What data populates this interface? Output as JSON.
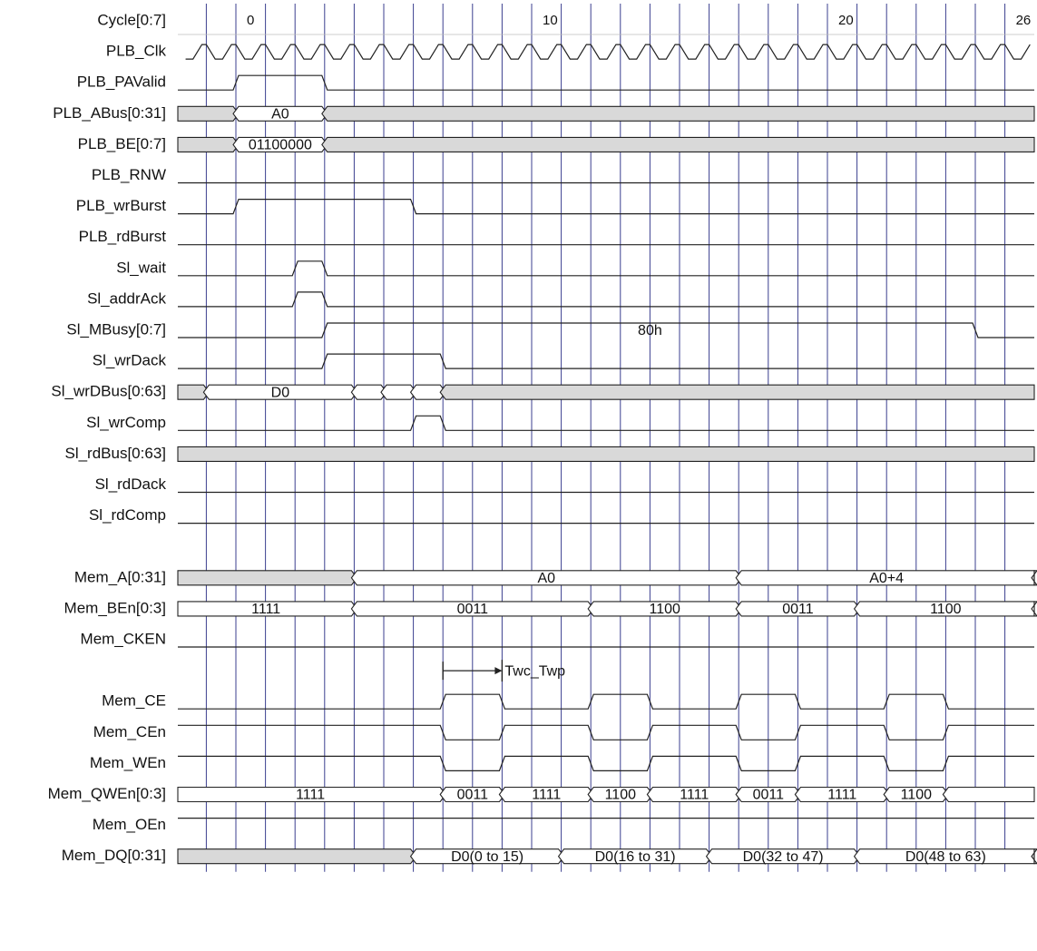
{
  "signals": [
    {
      "name": "Cycle[0:7]",
      "kind": "cycle",
      "labels": [
        {
          "cycle": 0,
          "text": "0"
        },
        {
          "cycle": 10,
          "text": "10"
        },
        {
          "cycle": 20,
          "text": "20"
        },
        {
          "cycle": 26,
          "text": "26"
        }
      ]
    },
    {
      "name": "PLB_Clk",
      "kind": "clock"
    },
    {
      "name": "PLB_PAValid",
      "kind": "bit",
      "pulses": [
        [
          0,
          3
        ]
      ]
    },
    {
      "name": "PLB_ABus[0:31]",
      "kind": "bus",
      "segs": [
        {
          "from": -5,
          "to": 0,
          "state": "x"
        },
        {
          "from": 0,
          "to": 3,
          "state": "v",
          "text": "A0"
        },
        {
          "from": 3,
          "to": 27.5,
          "state": "x"
        }
      ]
    },
    {
      "name": "PLB_BE[0:7]",
      "kind": "bus",
      "segs": [
        {
          "from": -5,
          "to": 0,
          "state": "x"
        },
        {
          "from": 0,
          "to": 3,
          "state": "v",
          "text": "01100000"
        },
        {
          "from": 3,
          "to": 27.5,
          "state": "x"
        }
      ]
    },
    {
      "name": "PLB_RNW",
      "kind": "bit",
      "pulses": []
    },
    {
      "name": "PLB_wrBurst",
      "kind": "bit",
      "pulses": [
        [
          0,
          6
        ]
      ]
    },
    {
      "name": "PLB_rdBurst",
      "kind": "bit",
      "pulses": []
    },
    {
      "name": "Sl_wait",
      "kind": "bit",
      "pulses": [
        [
          2,
          3
        ]
      ]
    },
    {
      "name": "Sl_addrAck",
      "kind": "bit",
      "pulses": [
        [
          2,
          3
        ]
      ]
    },
    {
      "name": "Sl_MBusy[0:7]",
      "kind": "busline",
      "from": 3,
      "to": 25,
      "text": "80h"
    },
    {
      "name": "Sl_wrDack",
      "kind": "bit",
      "pulses": [
        [
          3,
          7
        ]
      ]
    },
    {
      "name": "Sl_wrDBus[0:63]",
      "kind": "bus",
      "segs": [
        {
          "from": -5,
          "to": -1,
          "state": "x"
        },
        {
          "from": -1,
          "to": 4,
          "state": "v",
          "text": "D0"
        },
        {
          "from": 4,
          "to": 5,
          "state": "v"
        },
        {
          "from": 5,
          "to": 6,
          "state": "v"
        },
        {
          "from": 6,
          "to": 7,
          "state": "v"
        },
        {
          "from": 7,
          "to": 27.5,
          "state": "x"
        }
      ]
    },
    {
      "name": "Sl_wrComp",
      "kind": "bit",
      "pulses": [
        [
          6,
          7
        ]
      ]
    },
    {
      "name": "Sl_rdBus[0:63]",
      "kind": "bus",
      "segs": [
        {
          "from": -5,
          "to": 27.5,
          "state": "x"
        }
      ]
    },
    {
      "name": "Sl_rdDack",
      "kind": "bit",
      "pulses": []
    },
    {
      "name": "Sl_rdComp",
      "kind": "bit",
      "pulses": []
    },
    {
      "name": "",
      "kind": "gap"
    },
    {
      "name": "Mem_A[0:31]",
      "kind": "bus",
      "segs": [
        {
          "from": -5,
          "to": 4,
          "state": "x"
        },
        {
          "from": 4,
          "to": 17,
          "state": "v",
          "text": "A0"
        },
        {
          "from": 17,
          "to": 27,
          "state": "v",
          "text": "A0+4"
        },
        {
          "from": 27,
          "to": 27.5,
          "state": "x"
        }
      ]
    },
    {
      "name": "Mem_BEn[0:3]",
      "kind": "bus",
      "segs": [
        {
          "from": -5,
          "to": 4,
          "state": "v",
          "text": "1111"
        },
        {
          "from": 4,
          "to": 12,
          "state": "v",
          "text": "0011"
        },
        {
          "from": 12,
          "to": 17,
          "state": "v",
          "text": "1100"
        },
        {
          "from": 17,
          "to": 21,
          "state": "v",
          "text": "0011"
        },
        {
          "from": 21,
          "to": 27,
          "state": "v",
          "text": "1100"
        },
        {
          "from": 27,
          "to": 27.5,
          "state": "v"
        }
      ]
    },
    {
      "name": "Mem_CKEN",
      "kind": "bit",
      "pulses": []
    },
    {
      "name": "",
      "kind": "annotation",
      "from": 7,
      "to": 9,
      "text": "Twc_Twp"
    },
    {
      "name": "Mem_CE",
      "kind": "bit",
      "pulses": [
        [
          7,
          9
        ],
        [
          12,
          14
        ],
        [
          17,
          19
        ],
        [
          22,
          24
        ]
      ]
    },
    {
      "name": "Mem_CEn",
      "kind": "bit",
      "dips": [
        [
          7,
          9
        ],
        [
          12,
          14
        ],
        [
          17,
          19
        ],
        [
          22,
          24
        ]
      ]
    },
    {
      "name": "Mem_WEn",
      "kind": "bit",
      "dips": [
        [
          7,
          9
        ],
        [
          12,
          14
        ],
        [
          17,
          19
        ],
        [
          22,
          24
        ]
      ]
    },
    {
      "name": "Mem_QWEn[0:3]",
      "kind": "bus",
      "segs": [
        {
          "from": -5,
          "to": 7,
          "state": "v",
          "text": "1111"
        },
        {
          "from": 7,
          "to": 9,
          "state": "v",
          "text": "0011"
        },
        {
          "from": 9,
          "to": 12,
          "state": "v",
          "text": "1111"
        },
        {
          "from": 12,
          "to": 14,
          "state": "v",
          "text": "1100"
        },
        {
          "from": 14,
          "to": 17,
          "state": "v",
          "text": "1111"
        },
        {
          "from": 17,
          "to": 19,
          "state": "v",
          "text": "0011"
        },
        {
          "from": 19,
          "to": 22,
          "state": "v",
          "text": "1111"
        },
        {
          "from": 22,
          "to": 24,
          "state": "v",
          "text": "1100"
        },
        {
          "from": 24,
          "to": 27.5,
          "state": "v"
        }
      ]
    },
    {
      "name": "Mem_OEn",
      "kind": "bit",
      "pulses": [
        [
          -5,
          27.5
        ]
      ]
    },
    {
      "name": "Mem_DQ[0:31]",
      "kind": "bus",
      "segs": [
        {
          "from": -5,
          "to": 6,
          "state": "x"
        },
        {
          "from": 6,
          "to": 11,
          "state": "v",
          "text": "D0(0 to 15)"
        },
        {
          "from": 11,
          "to": 16,
          "state": "v",
          "text": "D0(16 to 31)"
        },
        {
          "from": 16,
          "to": 21,
          "state": "v",
          "text": "D0(32 to 47)"
        },
        {
          "from": 21,
          "to": 27,
          "state": "v",
          "text": "D0(48 to 63)"
        },
        {
          "from": 27,
          "to": 27.5,
          "state": "x"
        }
      ]
    }
  ],
  "colors": {
    "grid": "#3b3f8f",
    "line": "#222222",
    "shade": "#d9d9d9"
  }
}
